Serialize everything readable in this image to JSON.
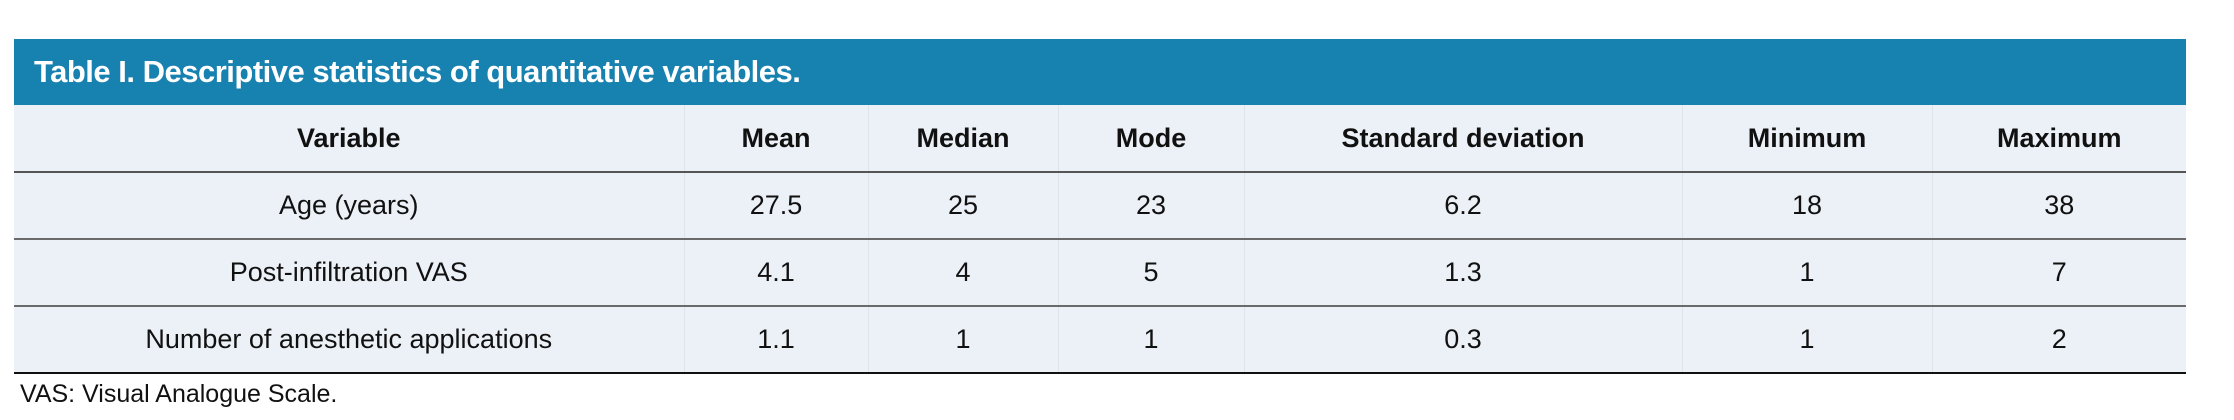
{
  "title": "Table I. Descriptive statistics of quantitative variables.",
  "columns": [
    "Variable",
    "Mean",
    "Median",
    "Mode",
    "Standard deviation",
    "Minimum",
    "Maximum"
  ],
  "rows": [
    [
      "Age (years)",
      "27.5",
      "25",
      "23",
      "6.2",
      "18",
      "38"
    ],
    [
      "Post-infiltration VAS",
      "4.1",
      "4",
      "5",
      "1.3",
      "1",
      "7"
    ],
    [
      "Number of anesthetic applications",
      "1.1",
      "1",
      "1",
      "0.3",
      "1",
      "2"
    ]
  ],
  "footnote": "VAS: Visual Analogue Scale.",
  "colors": {
    "header_band": "#1781b0",
    "table_bg": "#ecf0f7"
  }
}
